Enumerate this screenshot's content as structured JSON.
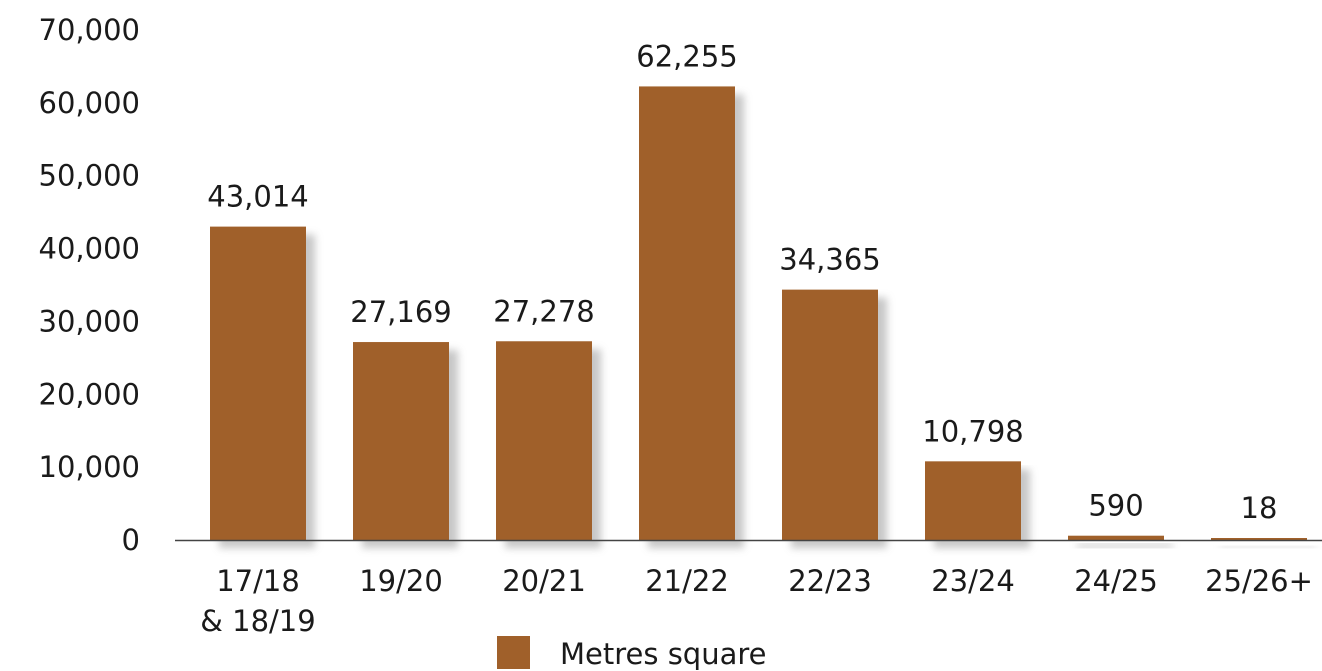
{
  "chart_data": {
    "type": "bar",
    "categories": [
      "17/18\n& 18/19",
      "19/20",
      "20/21",
      "21/22",
      "22/23",
      "23/24",
      "24/25",
      "25/26+"
    ],
    "series": [
      {
        "name": "Metres square",
        "values": [
          43014,
          27169,
          27278,
          62255,
          34365,
          10798,
          590,
          18
        ],
        "value_labels": [
          "43,014",
          "27,169",
          "27,278",
          "62,255",
          "34,365",
          "10,798",
          "590",
          "18"
        ]
      }
    ],
    "y_ticks": [
      "0",
      "10,000",
      "20,000",
      "30,000",
      "40,000",
      "50,000",
      "60,000",
      "70,000"
    ],
    "y_tick_values": [
      0,
      10000,
      20000,
      30000,
      40000,
      50000,
      60000,
      70000
    ],
    "ylim": [
      0,
      70000
    ],
    "title": "",
    "xlabel": "",
    "ylabel": "",
    "grid": false,
    "legend_position": "bottom-center",
    "colors": {
      "bar": "#A0602A",
      "shadow": "#bdbdbd",
      "axis": "#444444",
      "text": "#1a1a1a"
    }
  }
}
